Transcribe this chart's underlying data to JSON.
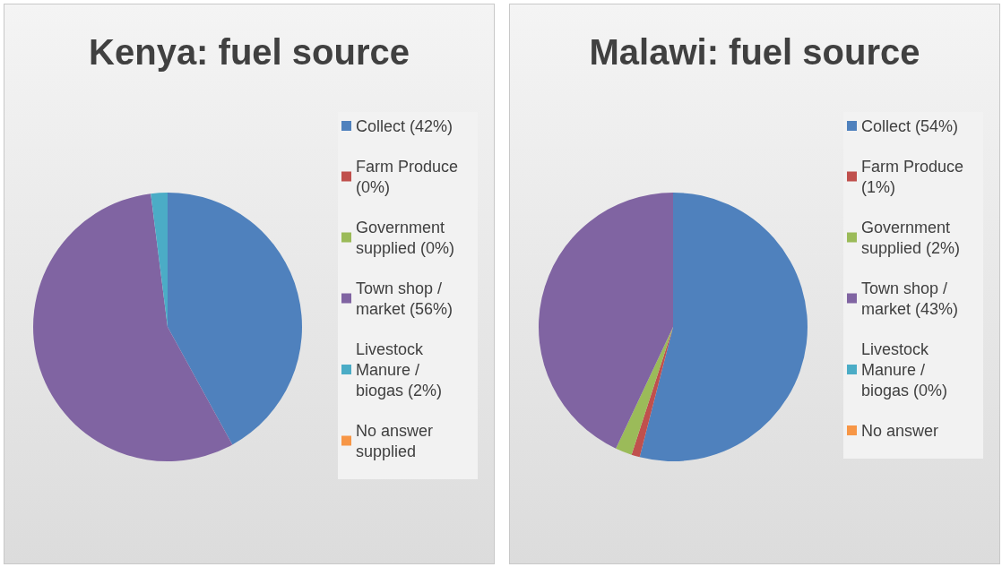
{
  "chart_data": [
    {
      "type": "pie",
      "title": "Kenya: fuel source",
      "categories": [
        "Collect (42%)",
        "Farm Produce (0%)",
        "Government supplied (0%)",
        "Town shop / market (56%)",
        "Livestock Manure / biogas (2%)",
        "No answer supplied"
      ],
      "values": [
        42,
        0,
        0,
        56,
        2,
        0
      ],
      "colors": [
        "#4f81bd",
        "#c0504d",
        "#9bbb59",
        "#8064a2",
        "#4bacc6",
        "#f79646"
      ],
      "legend": "right"
    },
    {
      "type": "pie",
      "title": "Malawi: fuel source",
      "categories": [
        "Collect (54%)",
        "Farm Produce (1%)",
        "Government supplied (2%)",
        "Town shop / market (43%)",
        "Livestock Manure / biogas (0%)",
        "No answer"
      ],
      "values": [
        54,
        1,
        2,
        43,
        0,
        0
      ],
      "colors": [
        "#4f81bd",
        "#c0504d",
        "#9bbb59",
        "#8064a2",
        "#4bacc6",
        "#f79646"
      ],
      "legend": "right"
    }
  ]
}
